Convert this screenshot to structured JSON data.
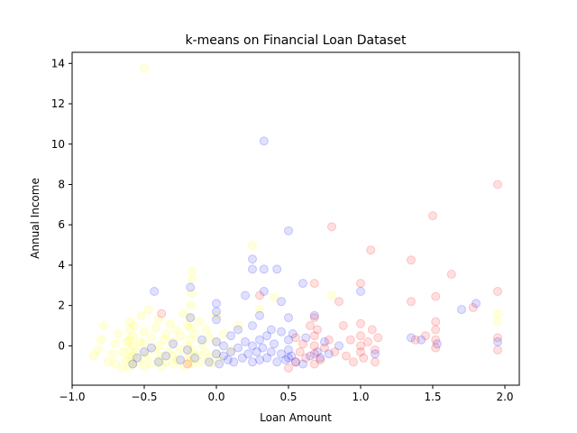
{
  "chart_data": {
    "type": "scatter",
    "title": "k-means on Financial Loan Dataset",
    "xlabel": "Loan Amount",
    "ylabel": "Annual Income",
    "xlim": [
      -1.0,
      2.1
    ],
    "ylim": [
      -1.95,
      14.55
    ],
    "xticks": [
      -1.0,
      -0.5,
      0.0,
      0.5,
      1.0,
      1.5,
      2.0
    ],
    "xtick_labels": [
      "−1.0",
      "−0.5",
      "0.0",
      "0.5",
      "1.0",
      "1.5",
      "2.0"
    ],
    "yticks": [
      0,
      2,
      4,
      6,
      8,
      10,
      12,
      14
    ],
    "ytick_labels": [
      "0",
      "2",
      "4",
      "6",
      "8",
      "10",
      "12",
      "14"
    ],
    "grid": false,
    "point_alpha": 0.12,
    "series": [
      {
        "color": "#ffff00",
        "points": [
          [
            -0.85,
            -0.5
          ],
          [
            -0.82,
            -0.2
          ],
          [
            -0.8,
            0.3
          ],
          [
            -0.78,
            1.0
          ],
          [
            -0.75,
            -0.8
          ],
          [
            -0.72,
            -0.4
          ],
          [
            -0.7,
            0.1
          ],
          [
            -0.7,
            -0.9
          ],
          [
            -0.68,
            0.6
          ],
          [
            -0.65,
            -0.3
          ],
          [
            -0.63,
            -0.7
          ],
          [
            -0.62,
            0.2
          ],
          [
            -0.6,
            -1.0
          ],
          [
            -0.6,
            -0.6
          ],
          [
            -0.6,
            -0.2
          ],
          [
            -0.6,
            0.3
          ],
          [
            -0.6,
            0.8
          ],
          [
            -0.6,
            1.2
          ],
          [
            -0.58,
            -0.9
          ],
          [
            -0.58,
            -0.5
          ],
          [
            -0.58,
            0.0
          ],
          [
            -0.58,
            0.5
          ],
          [
            -0.57,
            1.0
          ],
          [
            -0.55,
            -0.8
          ],
          [
            -0.55,
            -0.3
          ],
          [
            -0.53,
            0.2
          ],
          [
            -0.52,
            1.5
          ],
          [
            -0.5,
            -0.6
          ],
          [
            -0.5,
            0.1
          ],
          [
            -0.5,
            0.7
          ],
          [
            -0.5,
            -1.0
          ],
          [
            -0.5,
            13.75
          ],
          [
            -0.48,
            -0.4
          ],
          [
            -0.47,
            1.8
          ],
          [
            -0.45,
            -0.9
          ],
          [
            -0.45,
            0.4
          ],
          [
            -0.43,
            -0.2
          ],
          [
            -0.42,
            0.9
          ],
          [
            -0.4,
            -0.7
          ],
          [
            -0.4,
            0.0
          ],
          [
            -0.4,
            1.3
          ],
          [
            -0.38,
            -1.0
          ],
          [
            -0.38,
            -0.5
          ],
          [
            -0.36,
            0.3
          ],
          [
            -0.35,
            -0.8
          ],
          [
            -0.35,
            0.6
          ],
          [
            -0.33,
            -0.3
          ],
          [
            -0.32,
            1.1
          ],
          [
            -0.3,
            -0.9
          ],
          [
            -0.3,
            -0.5
          ],
          [
            -0.3,
            0.2
          ],
          [
            -0.28,
            0.8
          ],
          [
            -0.27,
            -0.7
          ],
          [
            -0.25,
            -0.2
          ],
          [
            -0.25,
            0.5
          ],
          [
            -0.23,
            1.6
          ],
          [
            -0.22,
            -1.0
          ],
          [
            -0.2,
            -0.6
          ],
          [
            -0.2,
            0.0
          ],
          [
            -0.2,
            1.0
          ],
          [
            -0.18,
            -0.8
          ],
          [
            -0.18,
            -0.4
          ],
          [
            -0.18,
            0.3
          ],
          [
            -0.18,
            0.9
          ],
          [
            -0.18,
            1.4
          ],
          [
            -0.18,
            2.0
          ],
          [
            -0.17,
            2.6
          ],
          [
            -0.17,
            3.3
          ],
          [
            -0.17,
            3.7
          ],
          [
            -0.16,
            -0.9
          ],
          [
            -0.16,
            -0.2
          ],
          [
            -0.15,
            0.6
          ],
          [
            -0.13,
            -0.5
          ],
          [
            -0.12,
            1.2
          ],
          [
            -0.1,
            -0.8
          ],
          [
            -0.1,
            0.1
          ],
          [
            -0.08,
            -0.3
          ],
          [
            -0.07,
            0.8
          ],
          [
            -0.05,
            -0.6
          ],
          [
            -0.05,
            0.4
          ],
          [
            -0.03,
            -0.9
          ],
          [
            0.0,
            -0.4
          ],
          [
            0.0,
            0.2
          ],
          [
            0.0,
            1.5
          ],
          [
            0.02,
            -0.7
          ],
          [
            0.05,
            0.6
          ],
          [
            0.1,
            -0.2
          ],
          [
            0.15,
            1.0
          ],
          [
            0.25,
            5.0
          ],
          [
            0.3,
            1.8
          ],
          [
            0.4,
            2.4
          ],
          [
            0.8,
            2.5
          ],
          [
            1.95,
            1.6
          ],
          [
            1.95,
            1.2
          ],
          [
            -0.65,
            -1.1
          ]
        ]
      },
      {
        "color": "#0000ff",
        "points": [
          [
            -0.58,
            -0.9
          ],
          [
            -0.55,
            -0.6
          ],
          [
            -0.5,
            -0.3
          ],
          [
            -0.45,
            -0.1
          ],
          [
            -0.43,
            2.7
          ],
          [
            -0.4,
            -0.8
          ],
          [
            -0.35,
            -0.5
          ],
          [
            -0.3,
            0.1
          ],
          [
            -0.25,
            -0.7
          ],
          [
            -0.2,
            -0.2
          ],
          [
            -0.18,
            2.9
          ],
          [
            -0.18,
            1.4
          ],
          [
            -0.15,
            -0.6
          ],
          [
            -0.1,
            0.3
          ],
          [
            -0.05,
            -0.8
          ],
          [
            0.0,
            -0.4
          ],
          [
            0.0,
            0.2
          ],
          [
            0.0,
            1.3
          ],
          [
            0.0,
            1.7
          ],
          [
            0.0,
            2.1
          ],
          [
            0.02,
            -0.9
          ],
          [
            0.05,
            -0.5
          ],
          [
            0.05,
            0.0
          ],
          [
            0.08,
            -0.7
          ],
          [
            0.1,
            -0.3
          ],
          [
            0.1,
            0.5
          ],
          [
            0.12,
            -0.8
          ],
          [
            0.15,
            -0.1
          ],
          [
            0.15,
            0.8
          ],
          [
            0.18,
            -0.6
          ],
          [
            0.2,
            0.2
          ],
          [
            0.2,
            2.5
          ],
          [
            0.22,
            -0.4
          ],
          [
            0.25,
            -0.8
          ],
          [
            0.25,
            0.0
          ],
          [
            0.25,
            1.0
          ],
          [
            0.25,
            4.3
          ],
          [
            0.25,
            3.8
          ],
          [
            0.28,
            -0.3
          ],
          [
            0.3,
            -0.7
          ],
          [
            0.3,
            0.3
          ],
          [
            0.3,
            1.5
          ],
          [
            0.32,
            -0.1
          ],
          [
            0.33,
            10.15
          ],
          [
            0.33,
            2.7
          ],
          [
            0.33,
            3.8
          ],
          [
            0.35,
            -0.6
          ],
          [
            0.35,
            0.5
          ],
          [
            0.38,
            -0.3
          ],
          [
            0.4,
            0.1
          ],
          [
            0.42,
            -0.8
          ],
          [
            0.42,
            3.8
          ],
          [
            0.45,
            -0.4
          ],
          [
            0.45,
            0.7
          ],
          [
            0.45,
            2.2
          ],
          [
            0.48,
            -0.7
          ],
          [
            0.5,
            -0.2
          ],
          [
            0.5,
            0.3
          ],
          [
            0.5,
            1.4
          ],
          [
            0.5,
            -0.6
          ],
          [
            0.5,
            5.7
          ],
          [
            0.52,
            -0.5
          ],
          [
            0.53,
            0.6
          ],
          [
            0.55,
            -0.8
          ],
          [
            0.6,
            3.1
          ],
          [
            0.62,
            0.4
          ],
          [
            0.65,
            -0.5
          ],
          [
            0.68,
            1.5
          ],
          [
            0.7,
            -0.3
          ],
          [
            0.72,
            -0.6
          ],
          [
            0.75,
            0.2
          ],
          [
            0.78,
            -0.4
          ],
          [
            0.85,
            0.0
          ],
          [
            1.0,
            2.7
          ],
          [
            1.1,
            -0.4
          ],
          [
            1.35,
            0.4
          ],
          [
            1.42,
            0.3
          ],
          [
            1.53,
            0.1
          ],
          [
            1.7,
            1.8
          ],
          [
            1.8,
            2.1
          ],
          [
            1.95,
            0.2
          ],
          [
            0.6,
            -0.9
          ],
          [
            0.38,
            0.8
          ]
        ]
      },
      {
        "color": "#ff0000",
        "points": [
          [
            -0.38,
            1.6
          ],
          [
            -0.2,
            -0.9
          ],
          [
            0.3,
            2.5
          ],
          [
            0.55,
            0.4
          ],
          [
            0.58,
            -0.3
          ],
          [
            0.6,
            0.1
          ],
          [
            0.62,
            -0.6
          ],
          [
            0.65,
            1.0
          ],
          [
            0.68,
            -0.9
          ],
          [
            0.68,
            -0.4
          ],
          [
            0.68,
            0.0
          ],
          [
            0.68,
            0.5
          ],
          [
            0.68,
            1.4
          ],
          [
            0.68,
            3.1
          ],
          [
            0.7,
            0.8
          ],
          [
            0.72,
            -0.7
          ],
          [
            0.75,
            -0.1
          ],
          [
            0.78,
            0.3
          ],
          [
            0.8,
            5.9
          ],
          [
            0.82,
            -0.3
          ],
          [
            0.85,
            2.2
          ],
          [
            0.88,
            1.0
          ],
          [
            0.9,
            -0.5
          ],
          [
            0.93,
            0.3
          ],
          [
            0.95,
            -0.8
          ],
          [
            1.0,
            0.0
          ],
          [
            1.0,
            0.5
          ],
          [
            1.0,
            -0.3
          ],
          [
            1.0,
            1.1
          ],
          [
            1.0,
            3.1
          ],
          [
            1.02,
            -0.6
          ],
          [
            1.05,
            0.2
          ],
          [
            1.07,
            4.75
          ],
          [
            1.08,
            0.8
          ],
          [
            1.1,
            -0.2
          ],
          [
            1.1,
            -0.8
          ],
          [
            1.12,
            0.4
          ],
          [
            1.35,
            4.25
          ],
          [
            1.35,
            2.2
          ],
          [
            1.38,
            0.3
          ],
          [
            1.45,
            0.5
          ],
          [
            1.5,
            6.45
          ],
          [
            1.52,
            2.45
          ],
          [
            1.52,
            1.2
          ],
          [
            1.52,
            0.8
          ],
          [
            1.52,
            0.3
          ],
          [
            1.52,
            -0.1
          ],
          [
            1.63,
            3.55
          ],
          [
            1.78,
            1.9
          ],
          [
            1.95,
            8.0
          ],
          [
            1.95,
            2.7
          ],
          [
            1.95,
            0.4
          ],
          [
            1.95,
            -0.2
          ],
          [
            0.5,
            -1.1
          ],
          [
            0.55,
            -0.8
          ]
        ]
      }
    ]
  }
}
